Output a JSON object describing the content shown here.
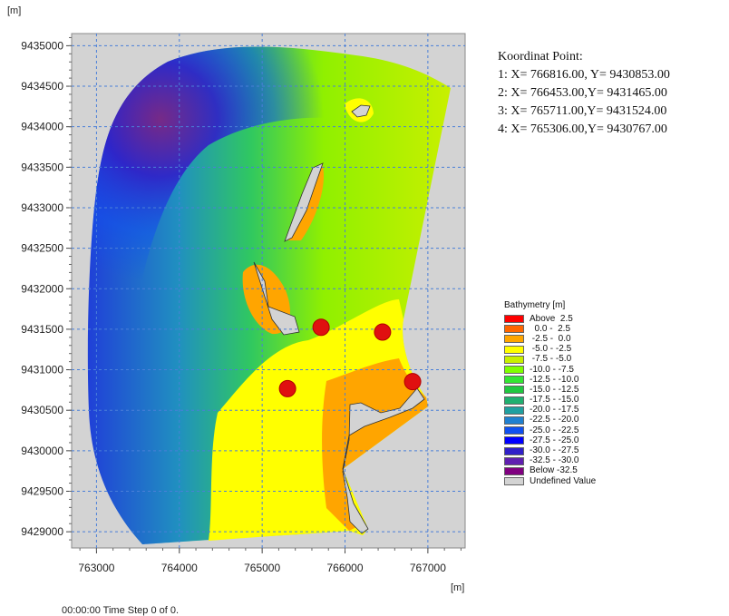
{
  "map": {
    "y_unit": "[m]",
    "x_unit": "[m]",
    "x_ticks": [
      "763000",
      "764000",
      "765000",
      "766000",
      "767000"
    ],
    "y_ticks": [
      "9435000",
      "9434500",
      "9434000",
      "9433500",
      "9433000",
      "9432500",
      "9432000",
      "9431500",
      "9431000",
      "9430500",
      "9430000",
      "9429500",
      "9429000"
    ],
    "x_range": [
      762700,
      767450
    ],
    "y_range": [
      9428800,
      9435150
    ],
    "points": [
      {
        "id": 1,
        "x": 766816.0,
        "y": 9430853.0
      },
      {
        "id": 2,
        "x": 766453.0,
        "y": 9431465.0
      },
      {
        "id": 3,
        "x": 765711.0,
        "y": 9431524.0
      },
      {
        "id": 4,
        "x": 765306.0,
        "y": 9430767.0
      }
    ],
    "point_color": "#e01010",
    "undefined_color": "#d3d3d3"
  },
  "coordinates": {
    "title": "Koordinat Point:",
    "lines": [
      "1: X= 766816.00, Y= 9430853.00",
      "2: X= 766453.00,Y= 9431465.00",
      "3: X= 765711.00,Y= 9431524.00",
      "4: X= 765306.00,Y= 9430767.00"
    ]
  },
  "legend": {
    "title": "Bathymetry [m]",
    "items": [
      {
        "label": "Above  2.5",
        "color": "#ff0000"
      },
      {
        "label": "  0.0 -  2.5",
        "color": "#ff6600"
      },
      {
        "label": " -2.5 -  0.0",
        "color": "#ffa500"
      },
      {
        "label": " -5.0 - -2.5",
        "color": "#ffff00"
      },
      {
        "label": " -7.5 - -5.0",
        "color": "#c8f000"
      },
      {
        "label": "-10.0 - -7.5",
        "color": "#80ff00"
      },
      {
        "label": "-12.5 - -10.0",
        "color": "#33e633"
      },
      {
        "label": "-15.0 - -12.5",
        "color": "#20c840"
      },
      {
        "label": "-17.5 - -15.0",
        "color": "#20b070"
      },
      {
        "label": "-20.0 - -17.5",
        "color": "#20a0a0"
      },
      {
        "label": "-22.5 - -20.0",
        "color": "#2080d0"
      },
      {
        "label": "-25.0 - -22.5",
        "color": "#1050f0"
      },
      {
        "label": "-27.5 - -25.0",
        "color": "#0000ff"
      },
      {
        "label": "-30.0 - -27.5",
        "color": "#3020c8"
      },
      {
        "label": "-32.5 - -30.0",
        "color": "#6020b0"
      },
      {
        "label": "Below -32.5",
        "color": "#800080"
      },
      {
        "label": "Undefined Value",
        "color": "#d3d3d3"
      }
    ]
  },
  "status": "00:00:00 Time Step 0 of 0."
}
